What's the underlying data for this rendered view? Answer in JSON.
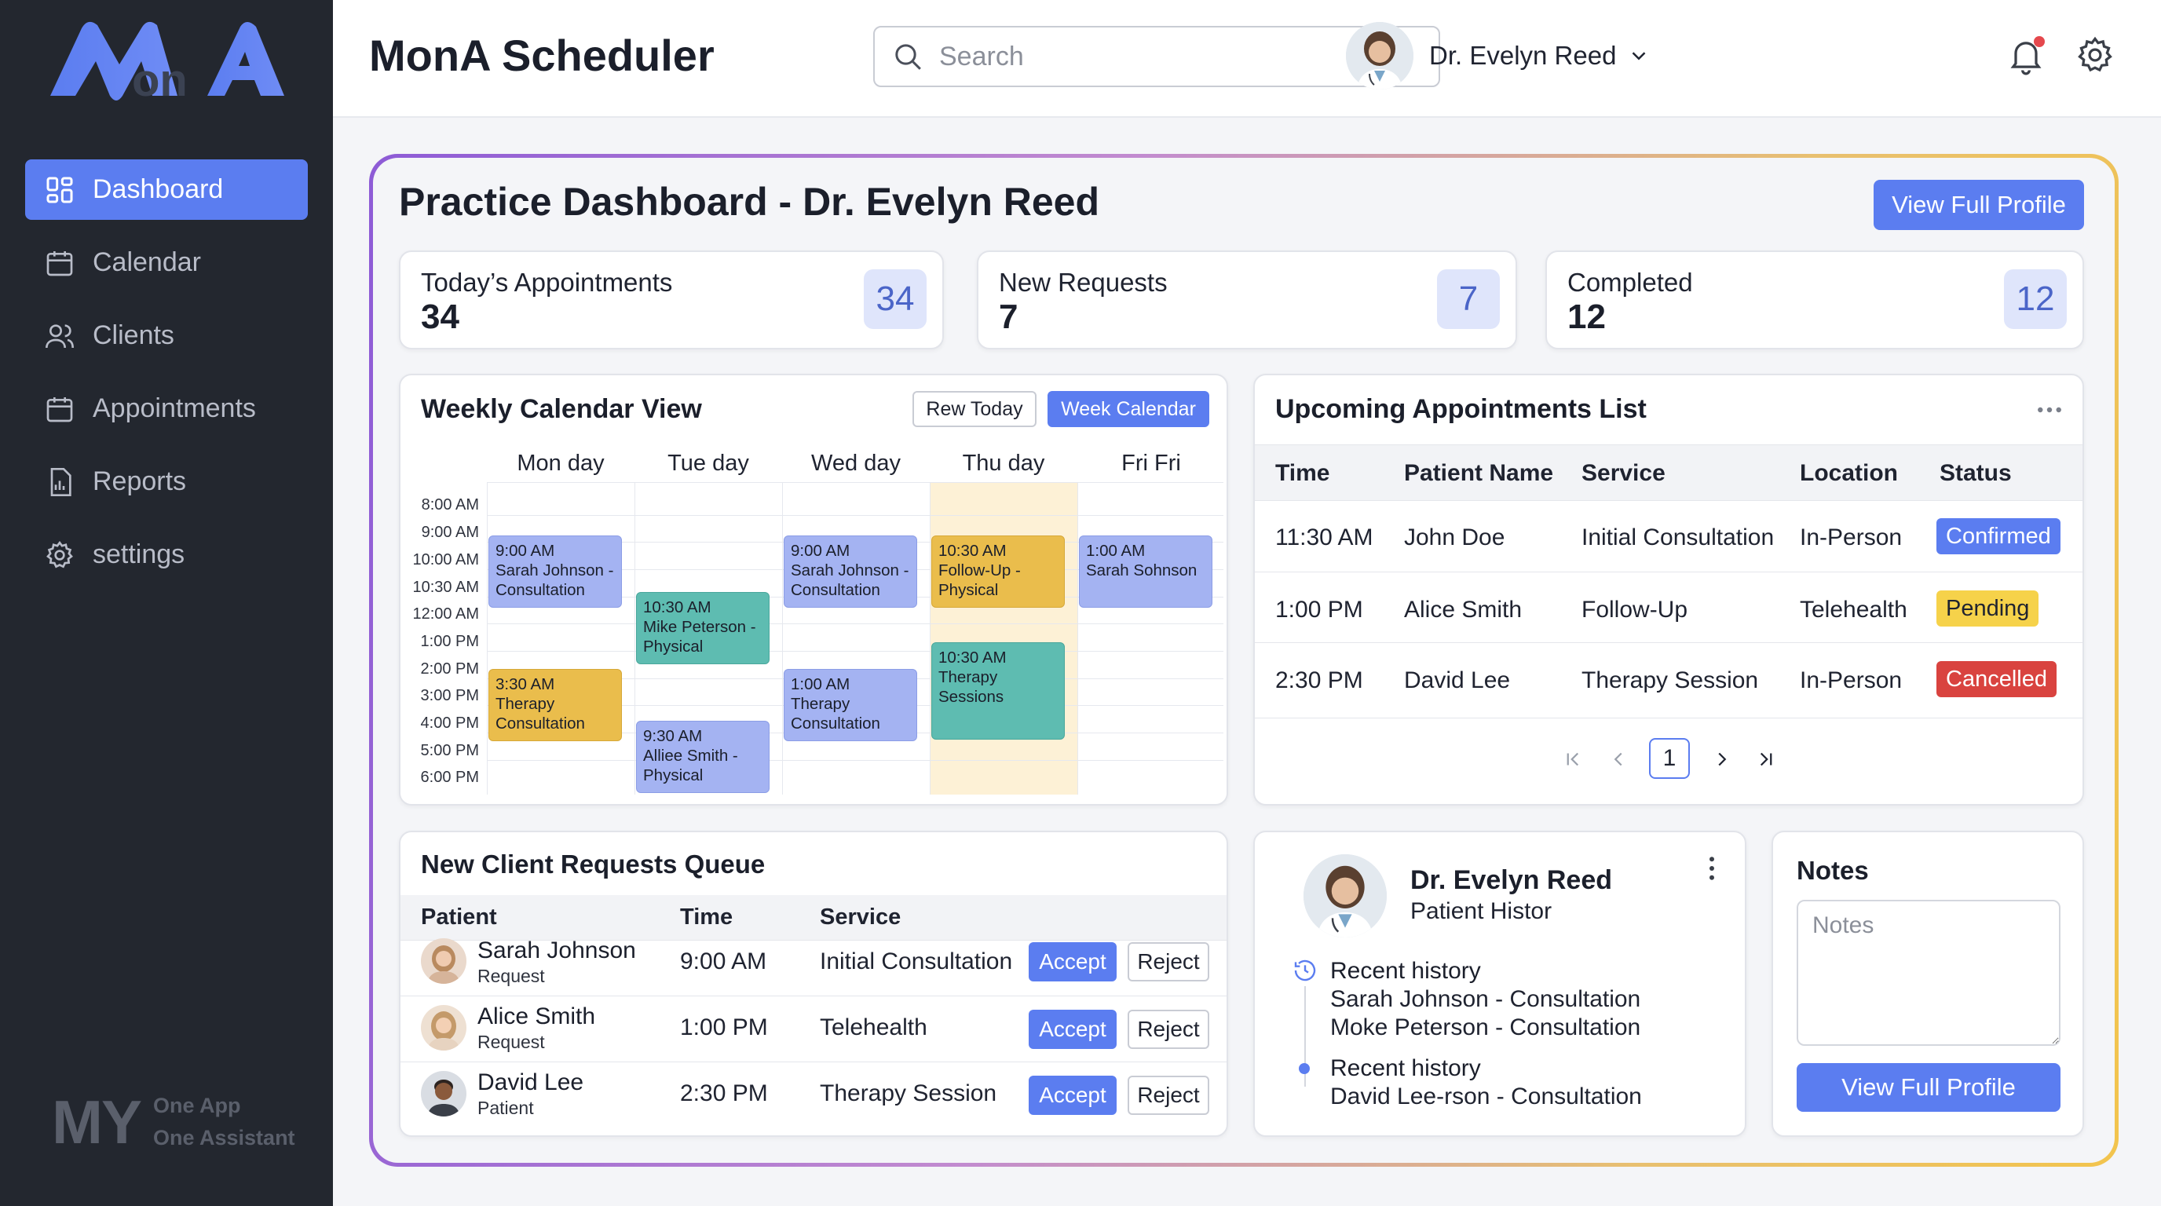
{
  "sidebar": {
    "items": [
      {
        "label": "Dashboard",
        "icon": "grid-icon"
      },
      {
        "label": "Calendar",
        "icon": "calendar-icon"
      },
      {
        "label": "Clients",
        "icon": "users-icon"
      },
      {
        "label": "Appointments",
        "icon": "calendar-icon"
      },
      {
        "label": "Reports",
        "icon": "report-icon"
      },
      {
        "label": "settings",
        "icon": "gear-icon"
      }
    ],
    "brand": {
      "mark": "MY",
      "line1": "One App",
      "line2": "One Assistant"
    }
  },
  "header": {
    "title": "MonA Scheduler",
    "search_placeholder": "Search",
    "user_name": "Dr. Evelyn Reed"
  },
  "dashboard": {
    "title": "Practice Dashboard - Dr. Evelyn Reed",
    "profile_button": "View Full Profile",
    "stats": [
      {
        "label": "Today’s Appointments",
        "value": "34",
        "badge": "34"
      },
      {
        "label": "New Requests",
        "value": "7",
        "badge": "7"
      },
      {
        "label": "Completed",
        "value": "12",
        "badge": "12"
      }
    ]
  },
  "calendar": {
    "title": "Weekly Calendar View",
    "today_button": "Rew Today",
    "week_button": "Week Calendar",
    "days": [
      "Mon day",
      "Tue day",
      "Wed day",
      "Thu day",
      "Fri Fri"
    ],
    "times": [
      "8:00 AM",
      "9:00 AM",
      "10:00 AM",
      "10:30 AM",
      "12:00 AM",
      "1:00 PM",
      "2:00 PM",
      "3:00 PM",
      "4:00 PM",
      "5:00 PM",
      "6:00 PM"
    ],
    "events": [
      {
        "time": "9:00 AM",
        "text": "Sarah Johnson - Consultation"
      },
      {
        "time": "3:30 AM",
        "text": "Therapy Consultation"
      },
      {
        "time": "10:30 AM",
        "text": "Mike Peterson - Physical"
      },
      {
        "time": "9:30 AM",
        "text": "Alliee Smith - Physical"
      },
      {
        "time": "9:00 AM",
        "text": "Sarah Johnson - Consultation"
      },
      {
        "time": "1:00 AM",
        "text": "Therapy Consultation"
      },
      {
        "time": "10:30 AM",
        "text": "Follow-Up - Physical"
      },
      {
        "time": "10:30 AM",
        "text": "Therapy Sessions"
      },
      {
        "time": "1:00 AM",
        "text": "Sarah Sohnson"
      }
    ],
    "colors": {
      "blue": "#a4b3f2",
      "teal": "#5ebcb1",
      "gold": "#eabd4c",
      "highlight": "#fdf1d6"
    }
  },
  "upcoming": {
    "title": "Upcoming Appointments List",
    "columns": [
      "Time",
      "Patient Name",
      "Service",
      "Location",
      "Status"
    ],
    "rows": [
      {
        "time": "11:30 AM",
        "patient": "John Doe",
        "service": "Initial Consultation",
        "location": "In-Person",
        "status": "Confirmed"
      },
      {
        "time": "1:00 PM",
        "patient": "Alice Smith",
        "service": "Follow-Up",
        "location": "Telehealth",
        "status": "Pending"
      },
      {
        "time": "2:30 PM",
        "patient": "David Lee",
        "service": "Therapy Session",
        "location": "In-Person",
        "status": "Cancelled"
      }
    ],
    "status_colors": {
      "Confirmed": "#5b7df0",
      "Pending": "#f6d24a",
      "Cancelled": "#d9433f"
    },
    "page": "1"
  },
  "requests": {
    "title": "New Client Requests Queue",
    "columns": [
      "Patient",
      "Time",
      "Service"
    ],
    "rows": [
      {
        "name": "Sarah Johnson",
        "sub": "Request",
        "time": "9:00 AM",
        "service": "Initial Consultation"
      },
      {
        "name": "Alice Smith",
        "sub": "Request",
        "time": "1:00 PM",
        "service": "Telehealth"
      },
      {
        "name": "David Lee",
        "sub": "Patient",
        "time": "2:30 PM",
        "service": "Therapy Session"
      }
    ],
    "accept_label": "Accept",
    "reject_label": "Reject"
  },
  "profile": {
    "name": "Dr. Evelyn Reed",
    "subtitle": "Patient Histor",
    "history": [
      {
        "title": "Recent history",
        "items": [
          "Sarah Johnson - Consultation",
          "Moke Peterson - Consultation"
        ]
      },
      {
        "title": "Recent history",
        "items": [
          "David Lee-rson - Consultation"
        ]
      }
    ]
  },
  "notes": {
    "title": "Notes",
    "placeholder": "Notes",
    "button": "View Full Profile"
  }
}
